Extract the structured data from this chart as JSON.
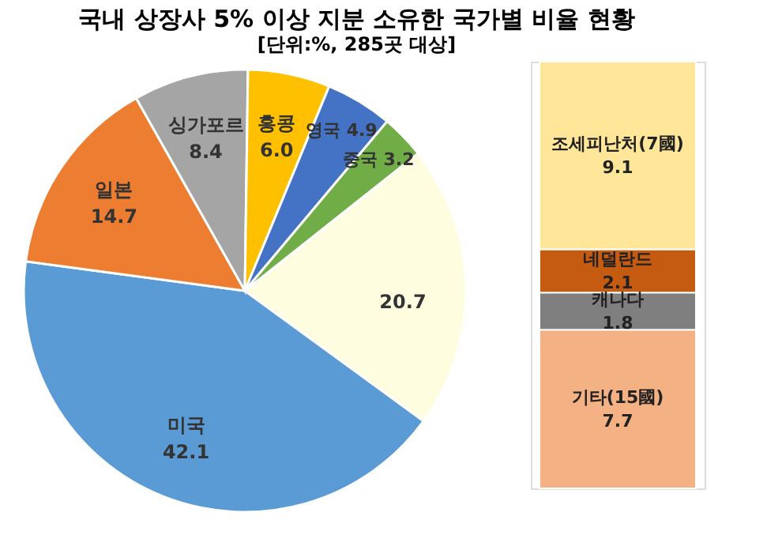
{
  "chart_data": [
    {
      "type": "pie",
      "title": "국내 상장사 5% 이상 지분 소유한 국가별 비율 현황",
      "subtitle": "[단위:%, 285곳 대상]",
      "categories": [
        null,
        "미국",
        "일본",
        "싱가포르",
        "홍콩",
        "영국",
        "중국"
      ],
      "values": [
        20.7,
        42.1,
        14.7,
        8.4,
        6.0,
        4.9,
        3.2
      ],
      "colors": [
        "#fffde0",
        "#5b9bd5",
        "#ed7d31",
        "#a5a5a5",
        "#ffc000",
        "#4472c4",
        "#70ad47"
      ],
      "value_labels": [
        "20.7",
        "42.1",
        "14.7",
        "8.4",
        "6.0",
        "4.9",
        "3.2"
      ],
      "legend": false
    },
    {
      "type": "bar",
      "categories": [
        null
      ],
      "stacked": true,
      "data_labels": true,
      "legend": false,
      "tick_labels": false,
      "series": [
        {
          "name": "기타(15國)",
          "color": "#f4b183",
          "values": [
            7.7
          ]
        },
        {
          "name": "캐나다",
          "color": "#7f7f7f",
          "values": [
            1.8
          ]
        },
        {
          "name": "네덜란드",
          "color": "#c55a11",
          "values": [
            2.1
          ]
        },
        {
          "name": "조세피난처(7國)",
          "color": "#ffe699",
          "values": [
            9.1
          ]
        }
      ]
    }
  ]
}
